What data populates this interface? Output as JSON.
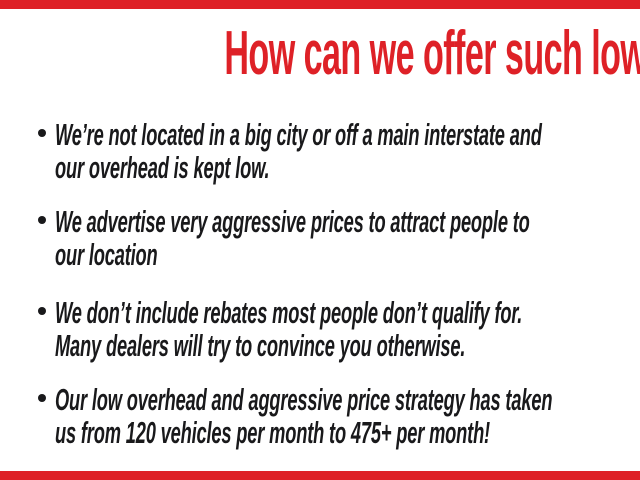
{
  "page": {
    "title": "How can we offer such low prices?",
    "colors": {
      "accent_red": "#de2127",
      "text_black": "#19191b",
      "background": "#ffffff"
    }
  },
  "decorations": {
    "top_bar": "red-horizontal-strip",
    "bottom_bar": "red-horizontal-strip"
  },
  "bullets": [
    {
      "lines": [
        "We’re not located in a big city or off a main interstate and",
        "our overhead is kept low."
      ]
    },
    {
      "lines": [
        "We advertise very aggressive prices to attract people to",
        "our location"
      ]
    },
    {
      "lines": [
        "We don’t include rebates most people don’t qualify for.",
        "Many dealers will try to convince you otherwise."
      ]
    },
    {
      "lines": [
        "Our low overhead and aggressive price strategy has taken",
        "us from 120 vehicles per month to 475+ per month!"
      ]
    }
  ]
}
